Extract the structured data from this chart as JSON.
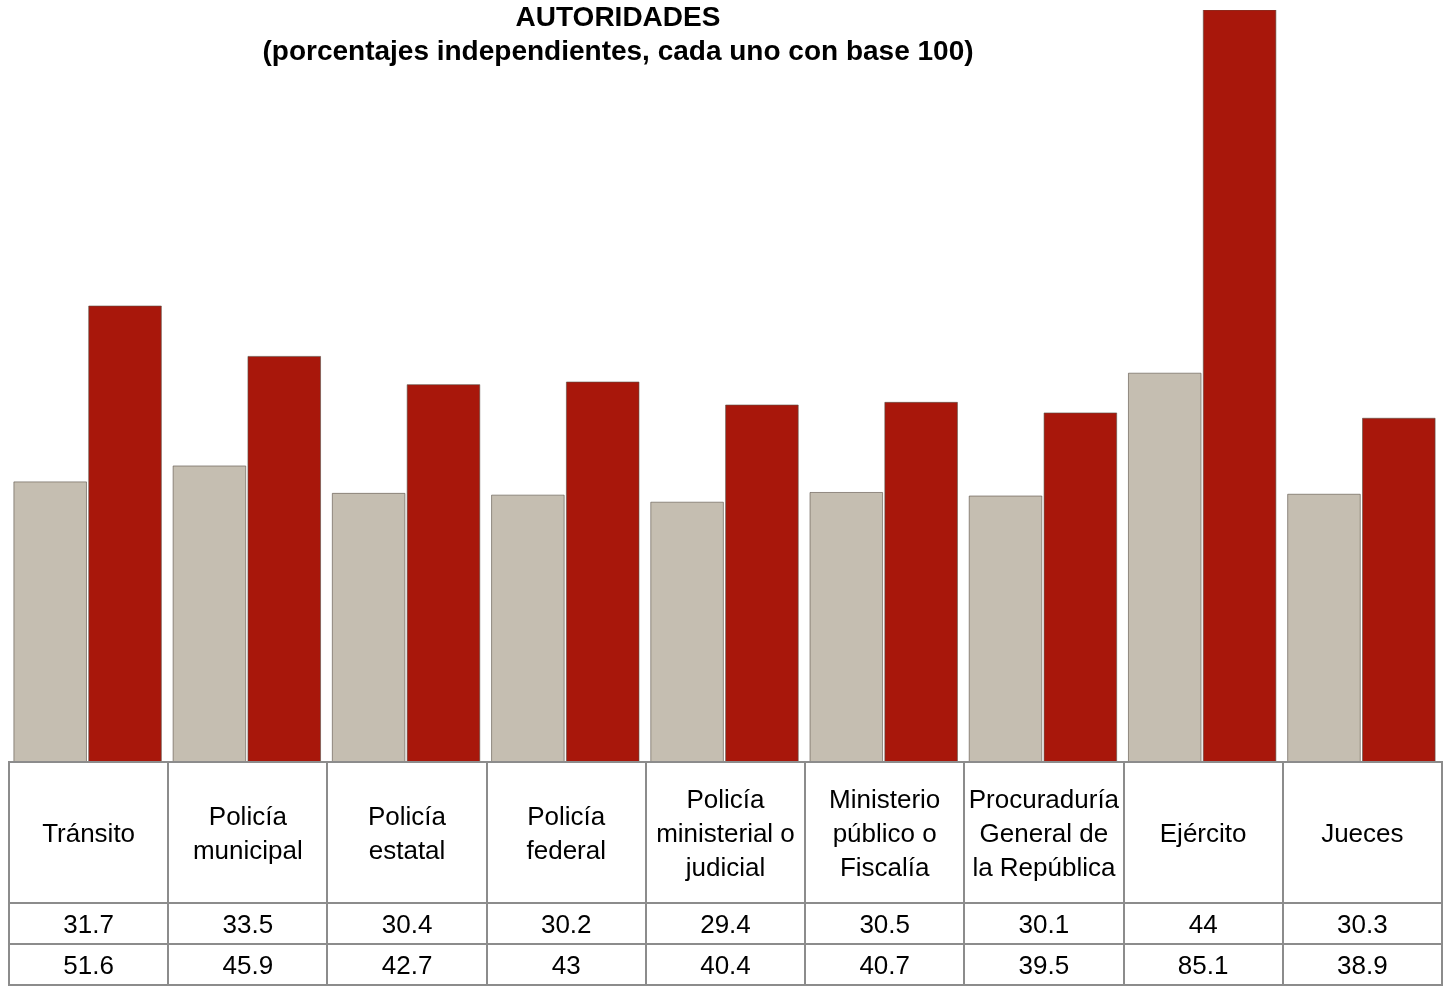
{
  "chart_data": {
    "type": "bar",
    "title": "AUTORIDADES",
    "subtitle": "(porcentajes independientes, cada uno con base 100)",
    "categories": [
      "Tránsito",
      "Policía municipal",
      "Policía estatal",
      "Policía federal",
      "Policía ministerial o judicial",
      "Ministerio público o Fiscalía",
      "Procuraduría General de la República",
      "Ejército",
      "Jueces"
    ],
    "series": [
      {
        "color": "#c5beb1",
        "values": [
          31.7,
          33.5,
          30.4,
          30.2,
          29.4,
          30.5,
          30.1,
          44,
          30.3
        ]
      },
      {
        "color": "#a8170b",
        "values": [
          51.6,
          45.9,
          42.7,
          43,
          40.4,
          40.7,
          39.5,
          85.1,
          38.9
        ]
      }
    ],
    "data_labels": true,
    "tick_labels": "x"
  }
}
